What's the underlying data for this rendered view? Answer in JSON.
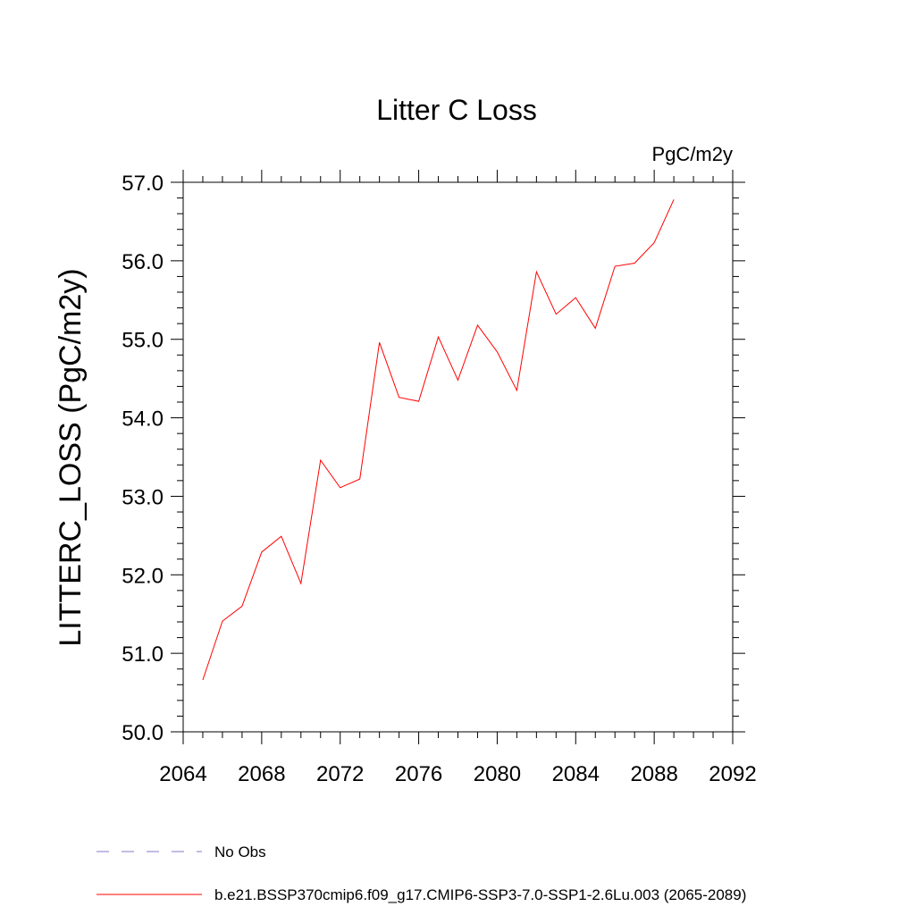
{
  "chart_data": {
    "type": "line",
    "title": "Litter C Loss",
    "units_label": "PgC/m2y",
    "ylabel": "LITTERC_LOSS  (PgC/m2y)",
    "xlabel": "",
    "xlim": [
      2064,
      2092
    ],
    "ylim": [
      50.0,
      57.0
    ],
    "x_ticks": [
      2064,
      2068,
      2072,
      2076,
      2080,
      2084,
      2088,
      2092
    ],
    "x_tick_labels": [
      "2064",
      "2068",
      "2072",
      "2076",
      "2080",
      "2084",
      "2088",
      "2092"
    ],
    "y_ticks": [
      50.0,
      51.0,
      52.0,
      53.0,
      54.0,
      55.0,
      56.0,
      57.0
    ],
    "y_tick_labels": [
      "50.0",
      "51.0",
      "52.0",
      "53.0",
      "54.0",
      "55.0",
      "56.0",
      "57.0"
    ],
    "grid": false,
    "legend_position": "bottom",
    "series": [
      {
        "name": "b.e21.BSSP370cmip6.f09_g17.CMIP6-SSP3-7.0-SSP1-2.6Lu.003 (2065-2089)",
        "color": "#ff0000",
        "x": [
          2065,
          2066,
          2067,
          2068,
          2069,
          2070,
          2071,
          2072,
          2073,
          2074,
          2075,
          2076,
          2077,
          2078,
          2079,
          2080,
          2081,
          2082,
          2083,
          2084,
          2085,
          2086,
          2087,
          2088,
          2089
        ],
        "y": [
          50.66,
          51.41,
          51.6,
          52.29,
          52.49,
          51.89,
          53.46,
          53.11,
          53.22,
          54.96,
          54.26,
          54.21,
          55.03,
          54.48,
          55.18,
          54.84,
          54.35,
          55.86,
          55.32,
          55.53,
          55.14,
          55.93,
          55.97,
          56.23,
          56.78
        ]
      }
    ],
    "legend": [
      {
        "label": "No Obs",
        "color": "#8878c8",
        "style": "dashed"
      },
      {
        "label": "b.e21.BSSP370cmip6.f09_g17.CMIP6-SSP3-7.0-SSP1-2.6Lu.003 (2065-2089)",
        "color": "#ff0000",
        "style": "solid"
      }
    ]
  }
}
